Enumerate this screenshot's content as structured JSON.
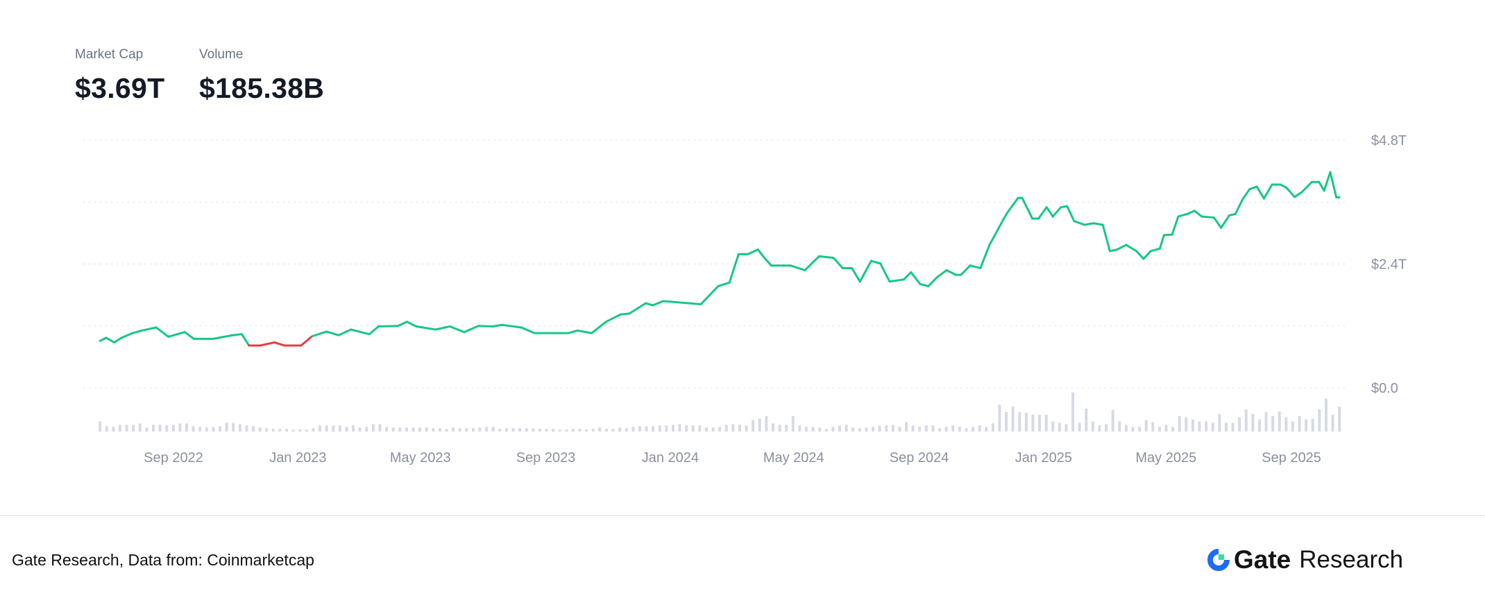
{
  "header": {
    "market_cap_label": "Market Cap",
    "market_cap_value": "$3.69T",
    "volume_label": "Volume",
    "volume_value": "$185.38B"
  },
  "footer": {
    "source": "Gate Research, Data from: Coinmarketcap",
    "logo_text": "Gate",
    "logo_suffix": "Research"
  },
  "colors": {
    "up": "#16c784",
    "down": "#ea3943",
    "volume": "#d6dae4",
    "grid": "#dcdfe6",
    "logo_blue": "#1d6cf2",
    "logo_green": "#2fe0a3"
  },
  "chart_data": {
    "type": "line",
    "title": "",
    "xlabel": "",
    "ylabel": "",
    "ylim": [
      0,
      4.8
    ],
    "y_unit": "T",
    "grid": true,
    "y_gridlines": [
      0,
      1.2,
      2.4,
      3.6,
      4.8
    ],
    "y_ticks": [
      {
        "value": 0,
        "label": "$0.0"
      },
      {
        "value": 2.4,
        "label": "$2.4T"
      },
      {
        "value": 4.8,
        "label": "$4.8T"
      }
    ],
    "x_ticks": [
      {
        "date": "2022-09-01",
        "label": "Sep 2022"
      },
      {
        "date": "2023-01-01",
        "label": "Jan 2023"
      },
      {
        "date": "2023-05-01",
        "label": "May 2023"
      },
      {
        "date": "2023-09-01",
        "label": "Sep 2023"
      },
      {
        "date": "2024-01-01",
        "label": "Jan 2024"
      },
      {
        "date": "2024-05-01",
        "label": "May 2024"
      },
      {
        "date": "2024-09-01",
        "label": "Sep 2024"
      },
      {
        "date": "2025-01-01",
        "label": "Jan 2025"
      },
      {
        "date": "2025-05-01",
        "label": "May 2025"
      },
      {
        "date": "2025-09-01",
        "label": "Sep 2025"
      }
    ],
    "market_cap": [
      [
        "2022-06-21",
        0.91
      ],
      [
        "2022-06-27",
        0.97
      ],
      [
        "2022-07-05",
        0.88
      ],
      [
        "2022-07-12",
        0.97
      ],
      [
        "2022-07-23",
        1.06
      ],
      [
        "2022-08-01",
        1.11
      ],
      [
        "2022-08-15",
        1.17
      ],
      [
        "2022-08-27",
        0.99
      ],
      [
        "2022-09-12",
        1.08
      ],
      [
        "2022-09-21",
        0.95
      ],
      [
        "2022-10-10",
        0.95
      ],
      [
        "2022-10-29",
        1.02
      ],
      [
        "2022-11-07",
        1.04
      ],
      [
        "2022-11-14",
        0.82
      ],
      [
        "2022-11-25",
        0.82
      ],
      [
        "2022-12-09",
        0.88
      ],
      [
        "2022-12-19",
        0.82
      ],
      [
        "2023-01-04",
        0.82
      ],
      [
        "2023-01-15",
        1.0
      ],
      [
        "2023-01-29",
        1.09
      ],
      [
        "2023-02-10",
        1.02
      ],
      [
        "2023-02-22",
        1.13
      ],
      [
        "2023-03-12",
        1.04
      ],
      [
        "2023-03-21",
        1.19
      ],
      [
        "2023-04-09",
        1.2
      ],
      [
        "2023-04-18",
        1.28
      ],
      [
        "2023-04-27",
        1.19
      ],
      [
        "2023-05-16",
        1.13
      ],
      [
        "2023-05-30",
        1.19
      ],
      [
        "2023-06-13",
        1.08
      ],
      [
        "2023-06-27",
        1.2
      ],
      [
        "2023-07-11",
        1.19
      ],
      [
        "2023-07-20",
        1.22
      ],
      [
        "2023-08-08",
        1.17
      ],
      [
        "2023-08-21",
        1.06
      ],
      [
        "2023-09-23",
        1.06
      ],
      [
        "2023-10-02",
        1.11
      ],
      [
        "2023-10-16",
        1.06
      ],
      [
        "2023-10-30",
        1.28
      ],
      [
        "2023-11-13",
        1.42
      ],
      [
        "2023-11-22",
        1.44
      ],
      [
        "2023-12-08",
        1.64
      ],
      [
        "2023-12-15",
        1.6
      ],
      [
        "2023-12-25",
        1.68
      ],
      [
        "2024-01-31",
        1.62
      ],
      [
        "2024-02-17",
        1.97
      ],
      [
        "2024-02-28",
        2.04
      ],
      [
        "2024-03-08",
        2.59
      ],
      [
        "2024-03-17",
        2.59
      ],
      [
        "2024-03-27",
        2.68
      ],
      [
        "2024-04-01",
        2.55
      ],
      [
        "2024-04-09",
        2.37
      ],
      [
        "2024-04-28",
        2.37
      ],
      [
        "2024-05-12",
        2.28
      ],
      [
        "2024-05-26",
        2.55
      ],
      [
        "2024-06-09",
        2.52
      ],
      [
        "2024-06-18",
        2.32
      ],
      [
        "2024-06-27",
        2.32
      ],
      [
        "2024-07-05",
        2.06
      ],
      [
        "2024-07-16",
        2.46
      ],
      [
        "2024-07-25",
        2.41
      ],
      [
        "2024-08-03",
        2.06
      ],
      [
        "2024-08-17",
        2.1
      ],
      [
        "2024-08-24",
        2.24
      ],
      [
        "2024-09-02",
        2.01
      ],
      [
        "2024-09-10",
        1.97
      ],
      [
        "2024-09-19",
        2.15
      ],
      [
        "2024-09-28",
        2.28
      ],
      [
        "2024-10-07",
        2.19
      ],
      [
        "2024-10-12",
        2.19
      ],
      [
        "2024-10-21",
        2.37
      ],
      [
        "2024-10-31",
        2.32
      ],
      [
        "2024-11-09",
        2.77
      ],
      [
        "2024-11-23",
        3.28
      ],
      [
        "2024-11-27",
        3.41
      ],
      [
        "2024-12-07",
        3.68
      ],
      [
        "2024-12-11",
        3.68
      ],
      [
        "2024-12-21",
        3.28
      ],
      [
        "2024-12-27",
        3.28
      ],
      [
        "2025-01-04",
        3.5
      ],
      [
        "2025-01-10",
        3.32
      ],
      [
        "2025-01-18",
        3.5
      ],
      [
        "2025-01-24",
        3.52
      ],
      [
        "2025-01-31",
        3.23
      ],
      [
        "2025-02-10",
        3.16
      ],
      [
        "2025-02-19",
        3.19
      ],
      [
        "2025-02-28",
        3.16
      ],
      [
        "2025-03-07",
        2.65
      ],
      [
        "2025-03-14",
        2.68
      ],
      [
        "2025-03-23",
        2.77
      ],
      [
        "2025-04-02",
        2.65
      ],
      [
        "2025-04-09",
        2.5
      ],
      [
        "2025-04-16",
        2.65
      ],
      [
        "2025-04-25",
        2.7
      ],
      [
        "2025-04-29",
        2.96
      ],
      [
        "2025-05-07",
        2.97
      ],
      [
        "2025-05-13",
        3.32
      ],
      [
        "2025-05-22",
        3.37
      ],
      [
        "2025-05-29",
        3.43
      ],
      [
        "2025-06-05",
        3.32
      ],
      [
        "2025-06-17",
        3.3
      ],
      [
        "2025-06-24",
        3.1
      ],
      [
        "2025-07-02",
        3.34
      ],
      [
        "2025-07-08",
        3.37
      ],
      [
        "2025-07-15",
        3.65
      ],
      [
        "2025-07-22",
        3.85
      ],
      [
        "2025-07-29",
        3.9
      ],
      [
        "2025-08-05",
        3.67
      ],
      [
        "2025-08-13",
        3.94
      ],
      [
        "2025-08-21",
        3.94
      ],
      [
        "2025-08-27",
        3.88
      ],
      [
        "2025-09-04",
        3.7
      ],
      [
        "2025-09-11",
        3.79
      ],
      [
        "2025-09-21",
        3.99
      ],
      [
        "2025-09-28",
        3.99
      ],
      [
        "2025-10-03",
        3.82
      ],
      [
        "2025-10-09",
        4.18
      ],
      [
        "2025-10-15",
        3.69
      ],
      [
        "2025-10-18",
        3.69
      ]
    ],
    "volume_unit": "B",
    "volume": [
      75,
      40,
      35,
      50,
      50,
      50,
      60,
      30,
      50,
      50,
      45,
      50,
      60,
      60,
      40,
      35,
      30,
      35,
      40,
      65,
      65,
      55,
      45,
      40,
      30,
      25,
      20,
      20,
      20,
      15,
      15,
      15,
      25,
      45,
      45,
      45,
      45,
      35,
      45,
      30,
      35,
      55,
      55,
      35,
      30,
      30,
      30,
      30,
      30,
      30,
      25,
      25,
      20,
      30,
      25,
      25,
      25,
      30,
      35,
      35,
      20,
      25,
      25,
      25,
      25,
      25,
      20,
      20,
      20,
      15,
      15,
      20,
      20,
      15,
      20,
      30,
      20,
      20,
      30,
      25,
      35,
      40,
      40,
      40,
      45,
      45,
      50,
      55,
      45,
      45,
      45,
      30,
      30,
      35,
      50,
      55,
      50,
      45,
      85,
      95,
      115,
      60,
      50,
      50,
      115,
      45,
      35,
      35,
      30,
      20,
      35,
      45,
      50,
      30,
      25,
      30,
      35,
      45,
      45,
      50,
      35,
      70,
      45,
      35,
      45,
      45,
      25,
      35,
      45,
      35,
      25,
      35,
      45,
      35,
      60,
      200,
      145,
      185,
      145,
      140,
      125,
      125,
      125,
      75,
      65,
      55,
      290,
      65,
      170,
      75,
      45,
      55,
      160,
      75,
      50,
      35,
      35,
      85,
      70,
      35,
      50,
      35,
      115,
      105,
      90,
      75,
      75,
      65,
      130,
      65,
      65,
      105,
      165,
      130,
      90,
      145,
      115,
      150,
      105,
      75,
      115,
      90,
      95,
      165,
      245,
      125,
      185
    ]
  }
}
